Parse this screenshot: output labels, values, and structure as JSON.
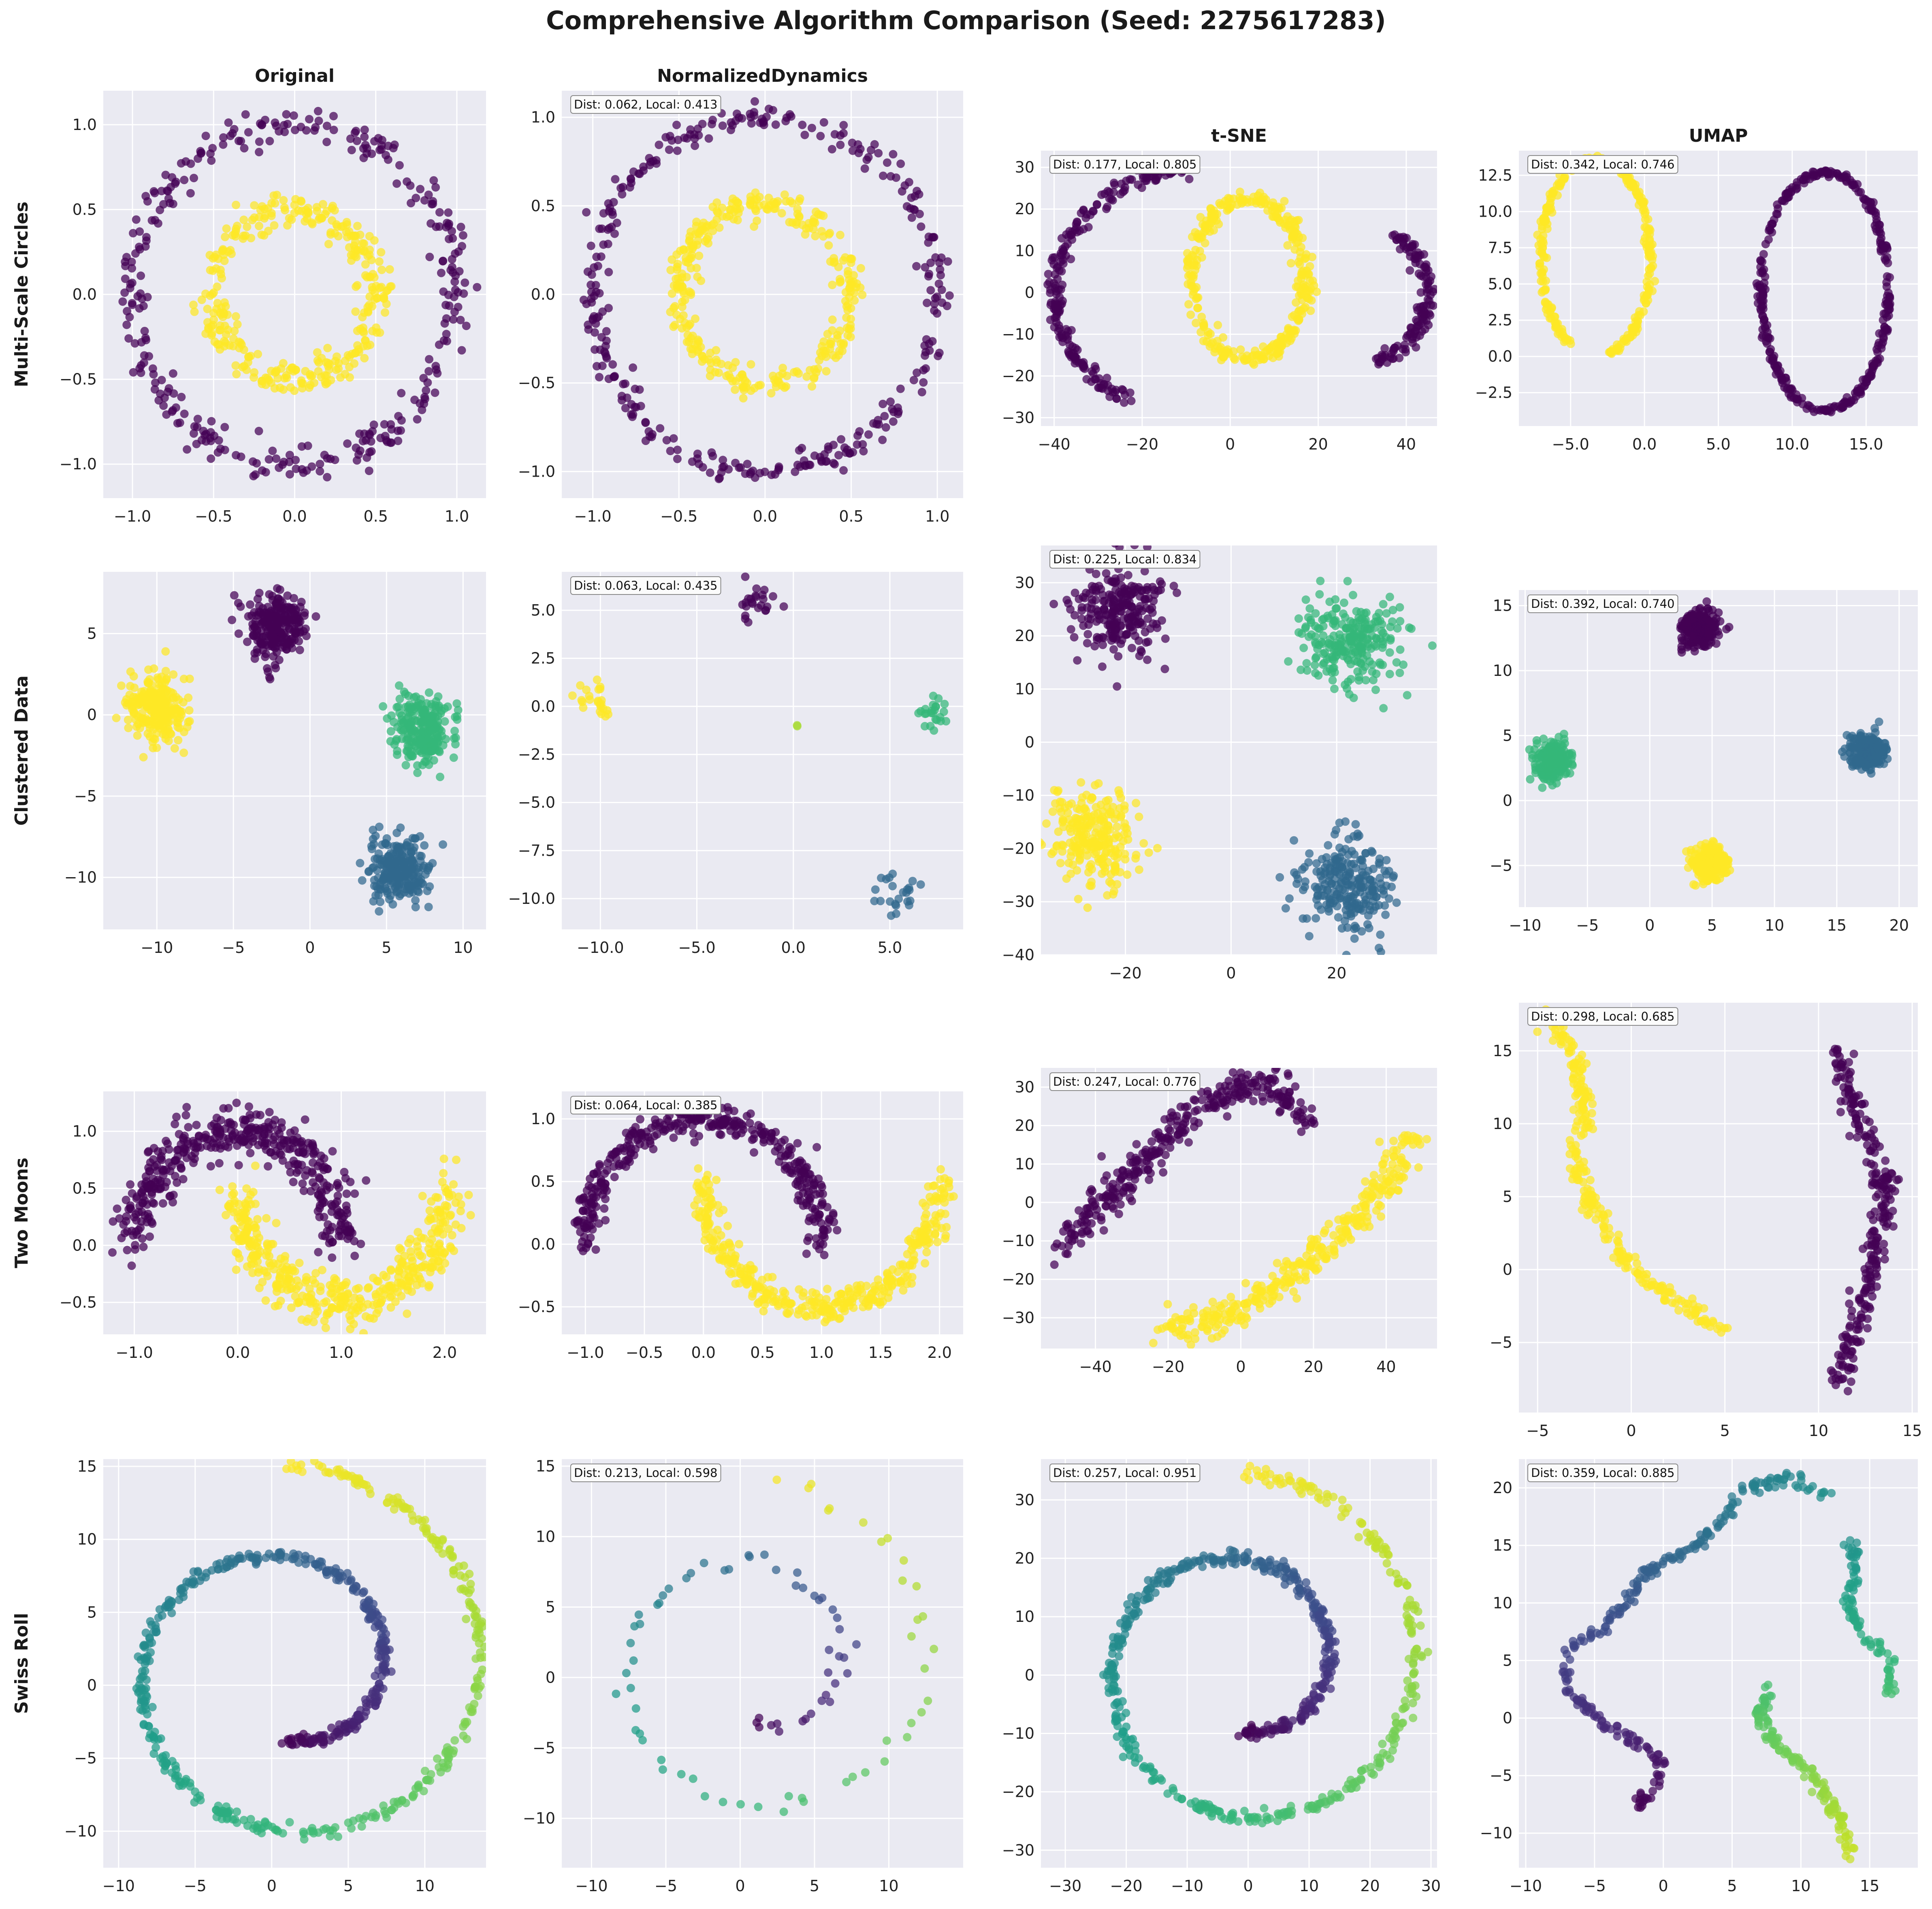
{
  "figure": {
    "title": "Comprehensive Algorithm Comparison (Seed: 2275617283)"
  },
  "colors": {
    "viridis_purple": "#440154",
    "viridis_blue": "#31688e",
    "viridis_green": "#35b779",
    "viridis_yellow": "#fde725",
    "panel_bg": "#eaeaf2",
    "grid": "#ffffff"
  },
  "chart_data": [
    {
      "row": 0,
      "col": 0,
      "type": "scatter",
      "title": "Original",
      "ylabel": "Multi-Scale Circles",
      "shape": "circles",
      "xlim": [
        -1.18,
        1.18
      ],
      "ylim": [
        -1.2,
        1.2
      ],
      "xticks": [
        -1.0,
        -0.5,
        0.0,
        0.5,
        1.0
      ],
      "yticks": [
        -1.0,
        -0.5,
        0.0,
        0.5,
        1.0
      ],
      "tickfmt": 1,
      "noise": 0.05,
      "grid": true,
      "series": [
        {
          "type": "ring",
          "cx": 0,
          "cy": 0,
          "rx": 1.0,
          "ry": 1.0,
          "n": 330,
          "color": "#440154"
        },
        {
          "type": "ring",
          "cx": 0,
          "cy": 0,
          "rx": 0.5,
          "ry": 0.5,
          "n": 330,
          "color": "#fde725"
        }
      ]
    },
    {
      "row": 0,
      "col": 1,
      "type": "scatter",
      "title": "NormalizedDynamics",
      "annotation": "Dist: 0.062, Local: 0.413",
      "shape": "circles",
      "xlim": [
        -1.18,
        1.15
      ],
      "ylim": [
        -1.15,
        1.15
      ],
      "xticks": [
        -1.0,
        -0.5,
        0.0,
        0.5,
        1.0
      ],
      "yticks": [
        -1.0,
        -0.5,
        0.0,
        0.5,
        1.0
      ],
      "tickfmt": 1,
      "noise": 0.04,
      "clumpy": true,
      "grid": true,
      "series": [
        {
          "type": "ring",
          "cx": 0,
          "cy": 0,
          "rx": 1.0,
          "ry": 1.0,
          "n": 330,
          "color": "#440154"
        },
        {
          "type": "ring",
          "cx": 0,
          "cy": 0,
          "rx": 0.5,
          "ry": 0.5,
          "n": 330,
          "color": "#fde725"
        }
      ]
    },
    {
      "row": 0,
      "col": 2,
      "type": "scatter",
      "title": "t-SNE",
      "annotation": "Dist: 0.177, Local: 0.805",
      "shape": "circles",
      "xlim": [
        -43,
        47
      ],
      "ylim": [
        -32,
        34
      ],
      "xticks": [
        -40,
        -20,
        0,
        20,
        40
      ],
      "yticks": [
        -30,
        -20,
        -10,
        0,
        10,
        20,
        30
      ],
      "tickfmt": 0,
      "noise": 1.0,
      "grid": true,
      "series": [
        {
          "type": "arc",
          "cx": -5,
          "cy": 0,
          "rx": 35,
          "ry": 30,
          "a0": 95,
          "a1": 240,
          "n": 220,
          "color": "#440154"
        },
        {
          "type": "arc",
          "cx": 20,
          "cy": 0,
          "rx": 25,
          "ry": 20,
          "a0": -55,
          "a1": 45,
          "n": 130,
          "color": "#440154"
        },
        {
          "type": "ring",
          "cx": 4,
          "cy": 3,
          "rx": 13,
          "ry": 19,
          "n": 320,
          "color": "#fde725"
        }
      ]
    },
    {
      "row": 0,
      "col": 3,
      "type": "scatter",
      "title": "UMAP",
      "annotation": "Dist: 0.342, Local: 0.746",
      "shape": "circles",
      "xlim": [
        -8.5,
        18.5
      ],
      "ylim": [
        -4.8,
        14.2
      ],
      "xticks": [
        -5,
        0,
        5,
        10,
        15
      ],
      "yticks": [
        -2.5,
        0.0,
        2.5,
        5.0,
        7.5,
        10.0,
        12.5
      ],
      "tickfmt": 1,
      "noise": 0.12,
      "grid": true,
      "series": [
        {
          "type": "arc",
          "cx": -3.3,
          "cy": 6.8,
          "rx": 3.7,
          "ry": 6.8,
          "a0": -75,
          "a1": 245,
          "n": 300,
          "color": "#fde725"
        },
        {
          "type": "ring",
          "cx": 12.2,
          "cy": 4.5,
          "rx": 4.3,
          "ry": 8.2,
          "n": 340,
          "color": "#440154"
        }
      ]
    },
    {
      "row": 1,
      "col": 0,
      "type": "scatter",
      "ylabel": "Clustered Data",
      "shape": "blobs",
      "xlim": [
        -13.5,
        11.5
      ],
      "ylim": [
        -13.2,
        8.8
      ],
      "xticks": [
        -10,
        -5,
        0,
        5,
        10
      ],
      "yticks": [
        -10,
        -5,
        0,
        5
      ],
      "tickfmt": 0,
      "grid": true,
      "series": [
        {
          "type": "blob",
          "cx": -2.3,
          "cy": 5.3,
          "s": 1.0,
          "n": 240,
          "color": "#440154"
        },
        {
          "type": "blob",
          "cx": -10.0,
          "cy": 0.5,
          "s": 1.0,
          "n": 240,
          "color": "#fde725"
        },
        {
          "type": "blob",
          "cx": 7.3,
          "cy": -0.9,
          "s": 1.0,
          "n": 240,
          "color": "#35b779"
        },
        {
          "type": "blob",
          "cx": 5.8,
          "cy": -9.5,
          "s": 1.0,
          "n": 240,
          "color": "#31688e"
        }
      ]
    },
    {
      "row": 1,
      "col": 1,
      "type": "scatter",
      "annotation": "Dist: 0.063, Local: 0.435",
      "shape": "blobs",
      "xlim": [
        -12,
        8.8
      ],
      "ylim": [
        -11.6,
        7.0
      ],
      "xticks": [
        -10,
        -5,
        0,
        5
      ],
      "yticks": [
        -10.0,
        -7.5,
        -5.0,
        -2.5,
        0.0,
        2.5,
        5.0
      ],
      "tickfmt": 1,
      "grid": true,
      "series": [
        {
          "type": "blob",
          "cx": -2.0,
          "cy": 5.3,
          "s": 0.5,
          "n": 24,
          "color": "#440154"
        },
        {
          "type": "blob",
          "cx": -10.3,
          "cy": 0.3,
          "s": 0.5,
          "n": 24,
          "color": "#fde725"
        },
        {
          "type": "blob",
          "cx": 7.0,
          "cy": -0.6,
          "s": 0.5,
          "n": 24,
          "color": "#35b779"
        },
        {
          "type": "blob",
          "cx": 5.5,
          "cy": -9.8,
          "s": 0.5,
          "n": 24,
          "color": "#31688e"
        },
        {
          "type": "blob",
          "cx": 0.2,
          "cy": -1.0,
          "s": 0.02,
          "n": 2,
          "color": "#a8db34"
        }
      ]
    },
    {
      "row": 1,
      "col": 2,
      "type": "scatter",
      "annotation": "Dist: 0.225, Local: 0.834",
      "shape": "blobs",
      "xlim": [
        -36,
        39
      ],
      "ylim": [
        -40,
        37
      ],
      "xticks": [
        -20,
        0,
        20
      ],
      "yticks": [
        -40,
        -30,
        -20,
        -10,
        0,
        10,
        20,
        30
      ],
      "tickfmt": 0,
      "grid": true,
      "series": [
        {
          "type": "blob",
          "cx": -21,
          "cy": 25,
          "s": 4.5,
          "n": 240,
          "color": "#440154"
        },
        {
          "type": "blob",
          "cx": -26,
          "cy": -18,
          "s": 4.5,
          "n": 240,
          "color": "#fde725"
        },
        {
          "type": "blob",
          "cx": 22,
          "cy": 19,
          "s": 4.5,
          "n": 240,
          "color": "#35b779"
        },
        {
          "type": "blob",
          "cx": 22,
          "cy": -27,
          "s": 4.5,
          "n": 240,
          "color": "#31688e"
        }
      ]
    },
    {
      "row": 1,
      "col": 3,
      "type": "scatter",
      "annotation": "Dist: 0.392, Local: 0.740",
      "shape": "blobs",
      "xlim": [
        -10.5,
        21.5
      ],
      "ylim": [
        -8.2,
        16.2
      ],
      "xticks": [
        -10,
        -5,
        0,
        5,
        10,
        15,
        20
      ],
      "yticks": [
        -5,
        0,
        5,
        10,
        15
      ],
      "tickfmt": 0,
      "grid": true,
      "series": [
        {
          "type": "blob",
          "cx": 4.0,
          "cy": 13.3,
          "s": 0.7,
          "n": 240,
          "color": "#440154"
        },
        {
          "type": "blob",
          "cx": -7.8,
          "cy": 3.0,
          "s": 0.7,
          "n": 240,
          "color": "#35b779"
        },
        {
          "type": "blob",
          "cx": 17.5,
          "cy": 3.8,
          "s": 0.7,
          "n": 240,
          "color": "#31688e"
        },
        {
          "type": "blob",
          "cx": 4.8,
          "cy": -4.8,
          "s": 0.7,
          "n": 240,
          "color": "#fde725"
        }
      ]
    },
    {
      "row": 2,
      "col": 0,
      "type": "scatter",
      "ylabel": "Two Moons",
      "shape": "moons",
      "xlim": [
        -1.3,
        2.4
      ],
      "ylim": [
        -0.78,
        1.35
      ],
      "xticks": [
        -1,
        0,
        1,
        2
      ],
      "yticks": [
        -0.5,
        0.0,
        0.5,
        1.0
      ],
      "tickfmt": 1,
      "grid": true,
      "series": [
        {
          "type": "moon",
          "upper": true,
          "n": 420,
          "noise": 0.11,
          "sx": 1.0,
          "sy": 1.0,
          "ox": 0,
          "oy": 0,
          "color": "#440154"
        },
        {
          "type": "moon",
          "upper": false,
          "n": 420,
          "noise": 0.11,
          "sx": 1.0,
          "sy": 1.0,
          "ox": 1,
          "oy": 0.5,
          "color": "#fde725"
        }
      ]
    },
    {
      "row": 2,
      "col": 1,
      "type": "scatter",
      "annotation": "Dist: 0.064, Local: 0.385",
      "shape": "moons",
      "xlim": [
        -1.2,
        2.2
      ],
      "ylim": [
        -0.72,
        1.22
      ],
      "xticks": [
        -1.0,
        -0.5,
        0.0,
        0.5,
        1.0,
        1.5,
        2.0
      ],
      "yticks": [
        -0.5,
        0.0,
        0.5,
        1.0
      ],
      "tickfmt": 1,
      "clumpy": true,
      "grid": true,
      "series": [
        {
          "type": "moon",
          "upper": true,
          "n": 380,
          "noise": 0.06,
          "sx": 1.0,
          "sy": 1.0,
          "ox": 0,
          "oy": 0,
          "color": "#440154"
        },
        {
          "type": "moon",
          "upper": false,
          "n": 380,
          "noise": 0.06,
          "sx": 1.0,
          "sy": 1.0,
          "ox": 1,
          "oy": 0.5,
          "color": "#fde725"
        }
      ]
    },
    {
      "row": 2,
      "col": 2,
      "type": "scatter",
      "annotation": "Dist: 0.247, Local: 0.776",
      "shape": "moons",
      "xlim": [
        -55,
        54
      ],
      "ylim": [
        -38,
        35
      ],
      "xticks": [
        -40,
        -20,
        0,
        20,
        40
      ],
      "yticks": [
        -30,
        -20,
        -10,
        0,
        10,
        20,
        30
      ],
      "tickfmt": 0,
      "grid": true,
      "series": [
        {
          "type": "poly",
          "pts": [
            [
              -50,
              -13
            ],
            [
              -40,
              -2
            ],
            [
              -25,
              12
            ],
            [
              -12,
              24
            ],
            [
              0,
              30
            ],
            [
              8,
              31
            ],
            [
              18,
              22
            ]
          ],
          "n": 320,
          "w": 2.2,
          "color": "#440154"
        },
        {
          "type": "poly",
          "pts": [
            [
              -20,
              -33
            ],
            [
              -5,
              -30
            ],
            [
              10,
              -22
            ],
            [
              25,
              -10
            ],
            [
              38,
              2
            ],
            [
              48,
              18
            ]
          ],
          "n": 320,
          "w": 2.2,
          "color": "#fde725"
        }
      ]
    },
    {
      "row": 2,
      "col": 3,
      "type": "scatter",
      "annotation": "Dist: 0.298, Local: 0.685",
      "shape": "moons",
      "xlim": [
        -6,
        15.3
      ],
      "ylim": [
        -9.8,
        18.3
      ],
      "xticks": [
        -5,
        0,
        5,
        10,
        15
      ],
      "yticks": [
        -5,
        0,
        5,
        10,
        15
      ],
      "tickfmt": 0,
      "grid": true,
      "series": [
        {
          "type": "poly",
          "pts": [
            [
              -4.5,
              17.5
            ],
            [
              -3,
              15
            ],
            [
              -2.5,
              11
            ],
            [
              -3,
              7.5
            ],
            [
              -2,
              4
            ],
            [
              0,
              0
            ],
            [
              2,
              -2
            ],
            [
              5,
              -4
            ]
          ],
          "n": 260,
          "w": 0.28,
          "color": "#fde725"
        },
        {
          "type": "poly",
          "pts": [
            [
              11,
              15
            ],
            [
              12,
              11
            ],
            [
              13.5,
              6
            ],
            [
              13,
              1
            ],
            [
              12,
              -4
            ],
            [
              11,
              -8
            ]
          ],
          "n": 260,
          "w": 0.3,
          "color": "#440154"
        }
      ]
    },
    {
      "row": 3,
      "col": 0,
      "type": "scatter",
      "ylabel": "Swiss Roll",
      "shape": "swiss",
      "xlim": [
        -11,
        14
      ],
      "ylim": [
        -12.5,
        15.5
      ],
      "xticks": [
        -10,
        -5,
        0,
        5,
        10
      ],
      "yticks": [
        -10,
        -5,
        0,
        5,
        10,
        15
      ],
      "tickfmt": 0,
      "grid": true,
      "series": [
        {
          "type": "spiral",
          "cx": 1,
          "cy": 1,
          "tmin": 4.71,
          "tmax": 14.14,
          "n": 650,
          "w": 0.22,
          "sx": 1.0,
          "sy": 1.0
        }
      ]
    },
    {
      "row": 3,
      "col": 1,
      "type": "scatter",
      "annotation": "Dist: 0.213, Local: 0.598",
      "shape": "swiss",
      "xlim": [
        -12,
        15
      ],
      "ylim": [
        -13.5,
        15.5
      ],
      "xticks": [
        -10,
        -5,
        0,
        5,
        10
      ],
      "yticks": [
        -10,
        -5,
        0,
        5,
        10,
        15
      ],
      "tickfmt": 0,
      "grid": true,
      "series": [
        {
          "type": "spiral",
          "cx": 1,
          "cy": 1,
          "tmin": 4.71,
          "tmax": 14.14,
          "n": 90,
          "w": 0.4,
          "sx": 0.92,
          "sy": 0.92,
          "sparse": true
        }
      ]
    },
    {
      "row": 3,
      "col": 2,
      "type": "scatter",
      "annotation": "Dist: 0.257, Local: 0.951",
      "shape": "swiss",
      "xlim": [
        -34,
        31
      ],
      "ylim": [
        -33,
        37
      ],
      "xticks": [
        -30,
        -20,
        -10,
        0,
        10,
        20,
        30
      ],
      "yticks": [
        -30,
        -20,
        -10,
        0,
        10,
        20,
        30
      ],
      "tickfmt": 0,
      "grid": true,
      "series": [
        {
          "type": "spiral",
          "cx": -1,
          "cy": 1.5,
          "tmin": 4.71,
          "tmax": 14.14,
          "n": 650,
          "w": 0.6,
          "sx": 2.25,
          "sy": 2.35
        }
      ]
    },
    {
      "row": 3,
      "col": 3,
      "type": "scatter",
      "annotation": "Dist: 0.359, Local: 0.885",
      "shape": "swiss",
      "xlim": [
        -10.5,
        18.5
      ],
      "ylim": [
        -13,
        22.5
      ],
      "xticks": [
        -10,
        -5,
        0,
        5,
        10,
        15
      ],
      "yticks": [
        -10,
        -5,
        0,
        5,
        10,
        15,
        20
      ],
      "tickfmt": 0,
      "grid": true,
      "series": [
        {
          "type": "polyc",
          "pts": [
            [
              -2,
              -8
            ],
            [
              -0.5,
              -6
            ],
            [
              0,
              -4
            ],
            [
              -2,
              -2
            ],
            [
              -5,
              0
            ],
            [
              -7,
              3
            ],
            [
              -7,
              6
            ],
            [
              -4,
              8
            ],
            [
              -2,
              11
            ],
            [
              -1,
              13
            ],
            [
              1,
              14
            ],
            [
              3,
              15.5
            ],
            [
              4,
              17
            ],
            [
              6,
              20
            ],
            [
              9,
              21
            ],
            [
              12,
              19.5
            ]
          ],
          "c0": 0.0,
          "c1": 0.5,
          "n": 260,
          "w": 0.25
        },
        {
          "type": "polyc",
          "pts": [
            [
              13.5,
              16
            ],
            [
              14,
              13
            ],
            [
              13.5,
              10
            ],
            [
              14.5,
              7
            ],
            [
              16.5,
              5
            ],
            [
              16.5,
              2
            ]
          ],
          "c0": 0.5,
          "c1": 0.7,
          "n": 90,
          "w": 0.25
        },
        {
          "type": "polyc",
          "pts": [
            [
              7.5,
              2.5
            ],
            [
              7,
              0
            ],
            [
              8,
              -2
            ],
            [
              10,
              -4
            ],
            [
              12,
              -7
            ],
            [
              13,
              -9
            ],
            [
              13.5,
              -12
            ]
          ],
          "c0": 0.7,
          "c1": 0.92,
          "n": 140,
          "w": 0.25
        }
      ]
    }
  ]
}
